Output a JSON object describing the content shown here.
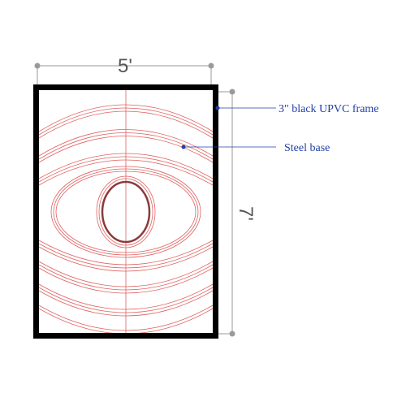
{
  "dimensions": {
    "width_label": "5'",
    "height_label": "7'"
  },
  "callouts": {
    "frame_label": "3\" black UPVC frame",
    "base_label": "Steel base"
  },
  "colors": {
    "frame": "#000000",
    "pattern": "#e06060",
    "inner_ellipse": "#8a3a3a",
    "dimension_line": "#9a9a9a",
    "callout": "#1f3fa8"
  }
}
